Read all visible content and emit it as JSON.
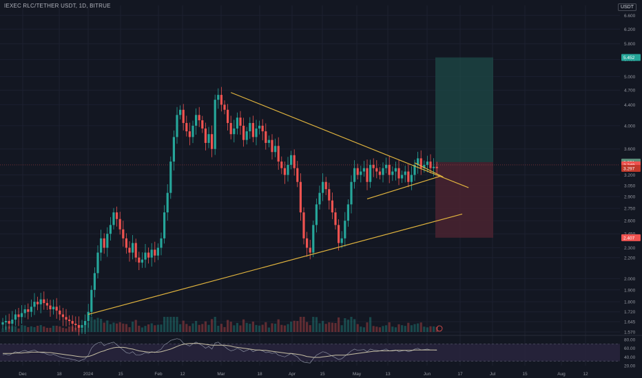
{
  "header": {
    "title": "IEXEC RLC/TETHER USDT, 1D, BITRUE",
    "currency": "USDT"
  },
  "colors": {
    "background": "#131722",
    "up": "#26a69a",
    "down": "#ef5350",
    "trendline": "#e2b53e",
    "rsi_line": "#c9c2a6",
    "rsi_fill": "#2a2640",
    "profit_zone": "#1d4a47",
    "loss_zone": "#4a2330"
  },
  "chart_data": {
    "type": "candlestick",
    "title": "IEXEC RLC/TETHER USDT, 1D, BITRUE",
    "xlabel": "",
    "ylabel": "",
    "y_scale": "log",
    "ylim": [
      1.57,
      6.9
    ],
    "y_ticks": [
      "6.600",
      "6.200",
      "5.800",
      "5.400",
      "5.000",
      "4.700",
      "4.400",
      "4.000",
      "3.600",
      "3.200",
      "3.050",
      "2.900",
      "2.750",
      "2.600",
      "2.450",
      "2.300",
      "2.200",
      "2.000",
      "1.900",
      "1.800",
      "1.720",
      "1.645",
      "1.570"
    ],
    "x_ticks": [
      "Dec",
      "18",
      "2024",
      "15",
      "Feb",
      "12",
      "Mar",
      "18",
      "Apr",
      "15",
      "May",
      "13",
      "Jun",
      "17",
      "Jul",
      "15",
      "Aug",
      "12"
    ],
    "price_labels": {
      "target": "5.452",
      "current": "3.349",
      "last": "3.297",
      "entry": "3.391",
      "stop": "2.407"
    },
    "close_series": [
      1.64,
      1.65,
      1.63,
      1.66,
      1.7,
      1.68,
      1.71,
      1.74,
      1.72,
      1.76,
      1.8,
      1.78,
      1.82,
      1.79,
      1.77,
      1.74,
      1.76,
      1.73,
      1.7,
      1.68,
      1.66,
      1.65,
      1.63,
      1.62,
      1.6,
      1.62,
      1.65,
      1.72,
      1.9,
      2.05,
      2.25,
      2.4,
      2.3,
      2.45,
      2.55,
      2.7,
      2.62,
      2.5,
      2.4,
      2.3,
      2.25,
      2.35,
      2.2,
      2.15,
      2.18,
      2.25,
      2.2,
      2.28,
      2.22,
      2.3,
      2.4,
      2.7,
      2.95,
      3.4,
      3.8,
      4.2,
      4.3,
      4.05,
      3.9,
      3.8,
      4.0,
      4.2,
      4.1,
      3.95,
      3.7,
      3.85,
      3.6,
      4.5,
      4.6,
      4.4,
      4.3,
      4.05,
      3.85,
      3.95,
      4.15,
      4.0,
      3.75,
      3.9,
      4.05,
      3.8,
      3.95,
      4.0,
      3.9,
      3.7,
      3.75,
      3.55,
      3.65,
      3.4,
      3.3,
      3.2,
      3.35,
      3.5,
      3.3,
      3.1,
      2.7,
      2.4,
      2.3,
      2.25,
      2.55,
      2.8,
      2.95,
      3.1,
      3.0,
      2.85,
      2.7,
      2.55,
      2.35,
      2.4,
      2.6,
      2.8,
      3.1,
      3.3,
      3.2,
      3.25,
      3.3,
      3.1,
      3.35,
      3.3,
      3.25,
      3.2,
      3.3,
      3.35,
      3.2,
      3.25,
      3.3,
      3.15,
      3.2,
      3.25,
      3.1,
      3.2,
      3.35,
      3.45,
      3.3,
      3.35,
      3.4,
      3.3,
      3.32,
      3.3
    ],
    "rsi": {
      "ylim": [
        20,
        80
      ],
      "ticks": [
        "80.00",
        "60.00",
        "40.00",
        "20.00"
      ],
      "upper": 70,
      "lower": 30,
      "values": [
        45,
        46,
        44,
        48,
        52,
        50,
        53,
        55,
        52,
        54,
        56,
        52,
        50,
        49,
        46,
        44,
        46,
        43,
        40,
        38,
        37,
        36,
        34,
        33,
        30,
        33,
        36,
        44,
        60,
        68,
        72,
        74,
        66,
        70,
        72,
        74,
        68,
        62,
        56,
        50,
        48,
        52,
        45,
        44,
        46,
        50,
        48,
        52,
        50,
        54,
        58,
        68,
        72,
        78,
        80,
        82,
        80,
        72,
        68,
        65,
        70,
        74,
        70,
        66,
        60,
        64,
        58,
        72,
        74,
        68,
        64,
        58,
        54,
        56,
        60,
        57,
        52,
        55,
        58,
        52,
        55,
        56,
        54,
        50,
        51,
        48,
        50,
        44,
        42,
        40,
        44,
        48,
        44,
        40,
        32,
        28,
        27,
        26,
        36,
        44,
        48,
        52,
        50,
        46,
        42,
        38,
        34,
        36,
        42,
        48,
        54,
        58,
        55,
        56,
        57,
        52,
        58,
        56,
        55,
        54,
        56,
        58,
        54,
        55,
        56,
        52,
        54,
        55,
        52,
        54,
        58,
        60,
        56,
        57,
        58,
        56,
        56,
        55
      ],
      "ma": [
        48,
        48,
        48,
        48,
        49,
        49,
        49,
        50,
        50,
        51,
        51,
        51,
        51,
        51,
        50,
        50,
        49,
        48,
        47,
        46,
        45,
        44,
        43,
        42,
        41,
        40,
        40,
        41,
        43,
        46,
        49,
        52,
        54,
        57,
        59,
        61,
        62,
        62,
        62,
        61,
        59,
        58,
        56,
        54,
        53,
        52,
        51,
        51,
        51,
        51,
        52,
        54,
        56,
        58,
        61,
        64,
        67,
        69,
        70,
        71,
        71,
        71,
        71,
        70,
        69,
        68,
        67,
        67,
        67,
        67,
        67,
        66,
        65,
        63,
        62,
        61,
        60,
        59,
        58,
        57,
        56,
        56,
        55,
        55,
        54,
        53,
        52,
        51,
        50,
        49,
        48,
        48,
        47,
        46,
        45,
        43,
        41,
        40,
        39,
        39,
        39,
        40,
        41,
        42,
        43,
        44,
        44,
        44,
        44,
        45,
        46,
        47,
        48,
        49,
        50,
        51,
        52,
        53,
        53,
        54,
        54,
        54,
        54,
        54,
        55,
        55,
        55,
        55,
        55,
        55,
        56,
        56,
        56,
        56,
        56,
        56,
        56,
        56
      ]
    },
    "annotations": [
      "symmetrical triangle",
      "lower trendline",
      "long position box"
    ]
  }
}
